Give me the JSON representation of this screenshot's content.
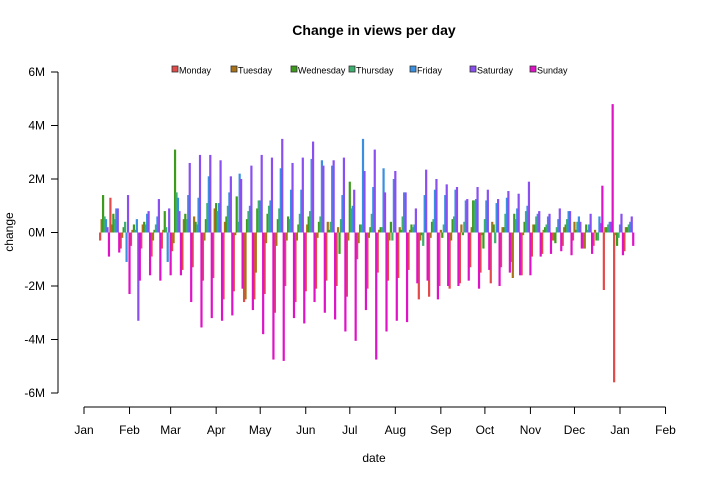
{
  "chart_data": {
    "type": "bar",
    "title": "Change in views per day",
    "xlabel": "date",
    "ylabel": "change",
    "ylim": [
      -6000000,
      6000000
    ],
    "y_ticks": [
      {
        "value": -6000000,
        "label": "-6M"
      },
      {
        "value": -4000000,
        "label": "-4M"
      },
      {
        "value": -2000000,
        "label": "-2M"
      },
      {
        "value": 0,
        "label": "0M"
      },
      {
        "value": 2000000,
        "label": "2M"
      },
      {
        "value": 4000000,
        "label": "4M"
      },
      {
        "value": 6000000,
        "label": "6M"
      }
    ],
    "x_ticks": [
      {
        "day": 0,
        "label": "Jan"
      },
      {
        "day": 31,
        "label": "Feb"
      },
      {
        "day": 59,
        "label": "Mar"
      },
      {
        "day": 90,
        "label": "Apr"
      },
      {
        "day": 120,
        "label": "May"
      },
      {
        "day": 151,
        "label": "Jun"
      },
      {
        "day": 181,
        "label": "Jul"
      },
      {
        "day": 212,
        "label": "Aug"
      },
      {
        "day": 243,
        "label": "Sep"
      },
      {
        "day": 273,
        "label": "Oct"
      },
      {
        "day": 304,
        "label": "Nov"
      },
      {
        "day": 334,
        "label": "Dec"
      },
      {
        "day": 365,
        "label": "Jan"
      },
      {
        "day": 396,
        "label": "Feb"
      }
    ],
    "x_unit": "day of year",
    "first_monday_day": 11,
    "value_unit_millions": true,
    "legend_position": "top",
    "series": [
      {
        "name": "Monday",
        "color": "#e34a4a",
        "values": [
          -0.3,
          1.3,
          -0.6,
          -0.5,
          -0.6,
          -0.9,
          -0.6,
          -0.7,
          -1.4,
          -1.3,
          -1.8,
          -1.7,
          -2.5,
          -2.2,
          -2.6,
          -2.5,
          -2.3,
          -3.0,
          -2.0,
          -2.6,
          -2.2,
          -2.1,
          -1.8,
          -2.0,
          -2.4,
          -1.0,
          -2.1,
          -1.5,
          -1.8,
          -1.7,
          -1.4,
          -2.5,
          -2.4,
          -2.0,
          -2.1,
          -1.9,
          -1.3,
          -1.5,
          -1.9,
          -1.3,
          -1.1,
          -1.6,
          -0.9,
          -0.8,
          -0.3,
          -0.5,
          -0.3,
          -0.6,
          -0.5,
          -2.15,
          -5.6,
          -0.7
        ]
      },
      {
        "name": "Tuesday",
        "color": "#a97218",
        "values": [
          0.5,
          0.3,
          -0.2,
          0.1,
          0.3,
          -0.3,
          0.1,
          -0.4,
          0.5,
          0.6,
          -0.3,
          0.9,
          0.4,
          -0.1,
          -2.5,
          -1.5,
          -0.4,
          -0.5,
          -0.3,
          -0.3,
          0.3,
          -0.2,
          0.4,
          0.2,
          -0.3,
          -0.4,
          -0.2,
          0.1,
          -0.3,
          0.2,
          0.1,
          -0.3,
          -0.2,
          0.1,
          -0.3,
          0.3,
          0.2,
          -0.1,
          0.4,
          0.2,
          -1.7,
          -0.1,
          0.3,
          0.1,
          -0.3,
          0.2,
          0.4,
          -0.6,
          0.1,
          0.2,
          -0.1,
          0.2
        ]
      },
      {
        "name": "Wednesday",
        "color": "#3c9a1c",
        "values": [
          1.4,
          0.7,
          0.2,
          0.3,
          0.4,
          0.1,
          0.8,
          3.1,
          0.7,
          0.4,
          0.5,
          1.1,
          0.6,
          1.35,
          0.5,
          0.9,
          0.7,
          0.5,
          0.6,
          0.3,
          0.6,
          0.4,
          0.1,
          -0.8,
          1.9,
          0.3,
          0.2,
          0.2,
          0.4,
          0.1,
          0.3,
          -0.1,
          0.4,
          -0.2,
          0.5,
          -0.1,
          1.2,
          -0.6,
          0.3,
          0.2,
          0.7,
          0.4,
          0.3,
          0.2,
          -0.4,
          0.3,
          0.1,
          0.3,
          -0.3,
          0.2,
          -0.5,
          0.2
        ]
      },
      {
        "name": "Thursday",
        "color": "#3daf6e",
        "values": [
          0.6,
          0.5,
          0.4,
          0.1,
          0.3,
          0.3,
          0.2,
          1.5,
          0.5,
          0.3,
          1.1,
          0.8,
          1.0,
          0.4,
          0.8,
          1.2,
          1.0,
          0.9,
          0.5,
          0.7,
          0.8,
          0.6,
          0.4,
          0.5,
          0.9,
          0.3,
          0.7,
          0.2,
          -0.3,
          0.6,
          0.2,
          -0.5,
          0.5,
          0.3,
          0.6,
          0.4,
          1.2,
          0.5,
          -0.4,
          0.7,
          0.5,
          0.8,
          0.6,
          0.3,
          0.2,
          0.5,
          0.4,
          0.1,
          -0.3,
          0.3,
          -0.2,
          0.3
        ]
      },
      {
        "name": "Friday",
        "color": "#3a8fe0",
        "values": [
          0.5,
          0.9,
          -1.1,
          0.5,
          0.7,
          0.6,
          -1.1,
          1.3,
          1.4,
          1.3,
          2.1,
          1.1,
          1.5,
          2.2,
          1.0,
          1.2,
          1.2,
          2.4,
          1.6,
          1.6,
          2.75,
          2.7,
          2.5,
          1.4,
          1.0,
          3.5,
          1.7,
          2.4,
          2.0,
          1.5,
          0.3,
          1.4,
          1.6,
          1.4,
          1.6,
          1.2,
          1.25,
          1.2,
          1.1,
          1.3,
          0.9,
          1.0,
          0.7,
          0.6,
          0.5,
          0.8,
          0.6,
          0.3,
          0.6,
          0.4,
          0.3,
          0.4
        ]
      },
      {
        "name": "Saturday",
        "color": "#8a4ff0",
        "values": [
          0.2,
          0.9,
          1.4,
          -3.3,
          0.8,
          1.25,
          0.9,
          0.8,
          2.6,
          2.9,
          2.9,
          2.7,
          2.1,
          2.0,
          2.5,
          2.9,
          2.8,
          3.5,
          2.6,
          2.8,
          3.4,
          2.5,
          2.7,
          2.8,
          1.6,
          2.3,
          3.1,
          1.5,
          2.3,
          1.5,
          0.9,
          2.35,
          2.0,
          1.8,
          1.7,
          1.25,
          1.7,
          1.6,
          1.25,
          1.55,
          1.45,
          1.9,
          0.8,
          0.7,
          0.9,
          0.8,
          0.4,
          0.7,
          0.35,
          0.4,
          0.7,
          0.6
        ]
      },
      {
        "name": "Sunday",
        "color": "#e012c8",
        "values": [
          -0.9,
          -0.75,
          -2.3,
          -1.8,
          -1.6,
          -1.8,
          -1.6,
          -1.6,
          -2.6,
          -3.55,
          -3.2,
          -3.3,
          -3.1,
          -2.1,
          -2.9,
          -3.8,
          -4.75,
          -4.8,
          -3.2,
          -3.4,
          -2.6,
          -3.0,
          -3.25,
          -3.7,
          -4.05,
          -2.9,
          -4.75,
          -3.7,
          -3.3,
          -3.35,
          -1.9,
          -1.8,
          -2.5,
          -2.0,
          -2.0,
          -1.8,
          -2.1,
          -1.4,
          -2.0,
          -1.5,
          -1.6,
          -1.6,
          -0.9,
          -0.8,
          -0.7,
          -0.85,
          -0.6,
          -0.8,
          1.75,
          4.8,
          -0.85,
          -0.5
        ]
      }
    ]
  }
}
